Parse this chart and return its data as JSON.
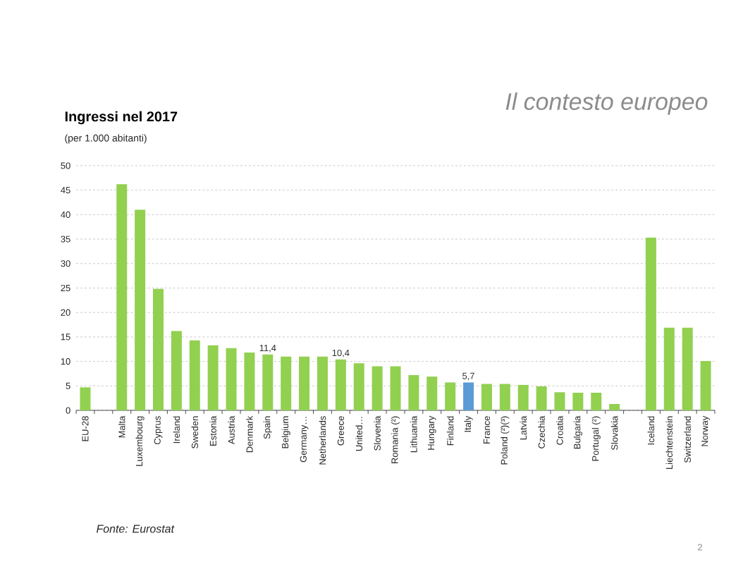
{
  "chart_data": {
    "type": "bar",
    "title": "Ingressi nel 2017",
    "subtitle": "(per 1.000 abitanti)",
    "categories": [
      "EU-28",
      null,
      "Malta",
      "Luxembourg",
      "Cyprus",
      "Ireland",
      "Sweden",
      "Estonia",
      "Austria",
      "Denmark",
      "Spain",
      "Belgium",
      "Germany…",
      "Netherlands",
      "Greece",
      "United…",
      "Slovenia",
      "Romania (²)",
      "Lithuania",
      "Hungary",
      "Finland",
      "Italy",
      "France",
      "Poland (²)(³)",
      "Latvia",
      "Czechia",
      "Croatia",
      "Bulgaria",
      "Portugal (²)",
      "Slovakia",
      null,
      "Iceland",
      "Liechtenstein",
      "Switzerland",
      "Norway"
    ],
    "values": [
      4.7,
      null,
      46.2,
      41.0,
      24.8,
      16.2,
      14.3,
      13.3,
      12.7,
      11.8,
      11.4,
      11.0,
      11.0,
      11.0,
      10.4,
      9.6,
      9.0,
      9.0,
      7.2,
      6.9,
      5.7,
      5.7,
      5.4,
      5.4,
      5.2,
      4.9,
      3.7,
      3.6,
      3.6,
      1.3,
      null,
      35.3,
      16.9,
      16.9,
      10.1
    ],
    "colors": [
      "#92d050",
      "#92d050",
      "#92d050",
      "#92d050",
      "#92d050",
      "#92d050",
      "#92d050",
      "#92d050",
      "#92d050",
      "#92d050",
      "#92d050",
      "#92d050",
      "#92d050",
      "#92d050",
      "#92d050",
      "#92d050",
      "#92d050",
      "#92d050",
      "#92d050",
      "#92d050",
      "#92d050",
      "#5b9bd5",
      "#92d050",
      "#92d050",
      "#92d050",
      "#92d050",
      "#92d050",
      "#92d050",
      "#92d050",
      "#92d050",
      "#92d050",
      "#92d050",
      "#92d050",
      "#92d050",
      "#92d050"
    ],
    "value_labels": [
      null,
      null,
      null,
      null,
      null,
      null,
      null,
      null,
      null,
      null,
      "11,4",
      null,
      null,
      null,
      "10,4",
      null,
      null,
      null,
      null,
      null,
      null,
      "5,7",
      null,
      null,
      null,
      null,
      null,
      null,
      null,
      null,
      null,
      null,
      null,
      null,
      null
    ],
    "ylim": [
      0,
      50
    ],
    "yticks": [
      0,
      5,
      10,
      15,
      20,
      25,
      30,
      35,
      40,
      45,
      50
    ],
    "grid": "y",
    "annotations": [
      "Il contesto europeo",
      "Fonte: Eurostat",
      "2"
    ]
  }
}
